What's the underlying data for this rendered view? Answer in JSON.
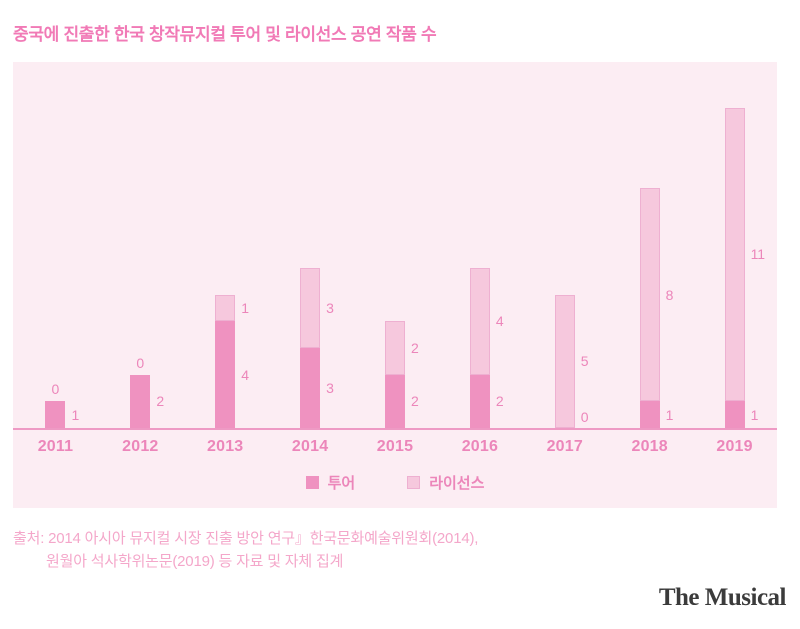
{
  "header": {
    "title": "중국에 진출한 한국 창작뮤지컬 투어 및 라이선스 공연 작품 수"
  },
  "chart_data": {
    "type": "bar",
    "stacked": true,
    "title": "중국에 진출한 한국 창작뮤지컬 투어 및 라이선스 공연 작품 수",
    "categories": [
      "2011",
      "2012",
      "2013",
      "2014",
      "2015",
      "2016",
      "2017",
      "2018",
      "2019"
    ],
    "series": [
      {
        "name": "투어",
        "color": "#ef92c0",
        "values": [
          1,
          2,
          4,
          3,
          2,
          2,
          0,
          1,
          1
        ]
      },
      {
        "name": "라이선스",
        "color": "#f6c8dd",
        "values": [
          0,
          0,
          1,
          3,
          2,
          4,
          5,
          8,
          11
        ]
      }
    ],
    "totals": [
      1,
      2,
      5,
      6,
      4,
      6,
      5,
      9,
      12
    ],
    "ylim": [
      0,
      13
    ],
    "grid": false,
    "value_labels": "beside-each-segment",
    "legend_position": "bottom-center",
    "xlabel": "",
    "ylabel": ""
  },
  "legend": {
    "items": [
      {
        "label": "투어",
        "color": "#ef92c0"
      },
      {
        "label": "라이선스",
        "color": "#f6c8dd"
      }
    ]
  },
  "source": {
    "line1": "출처: 2014 아시아 뮤지컬 시장 진출 방안 연구』한국문화예술위원회(2014),",
    "line2": "원월아 석사학위논문(2019) 등 자료 및 자체 집계"
  },
  "footer": {
    "logo": "The Musical"
  },
  "colors": {
    "title_text": "#f17ab6",
    "panel_bg": "#fcedf3",
    "axis_line": "#ee9ac4",
    "value_text": "#ec86ba",
    "source_text": "#f4a7ca",
    "logo_text": "#3b3b3b",
    "tour_bar": "#ef92c0",
    "license_bar": "#f6c8dd",
    "license_border": "#eeb0d1"
  }
}
